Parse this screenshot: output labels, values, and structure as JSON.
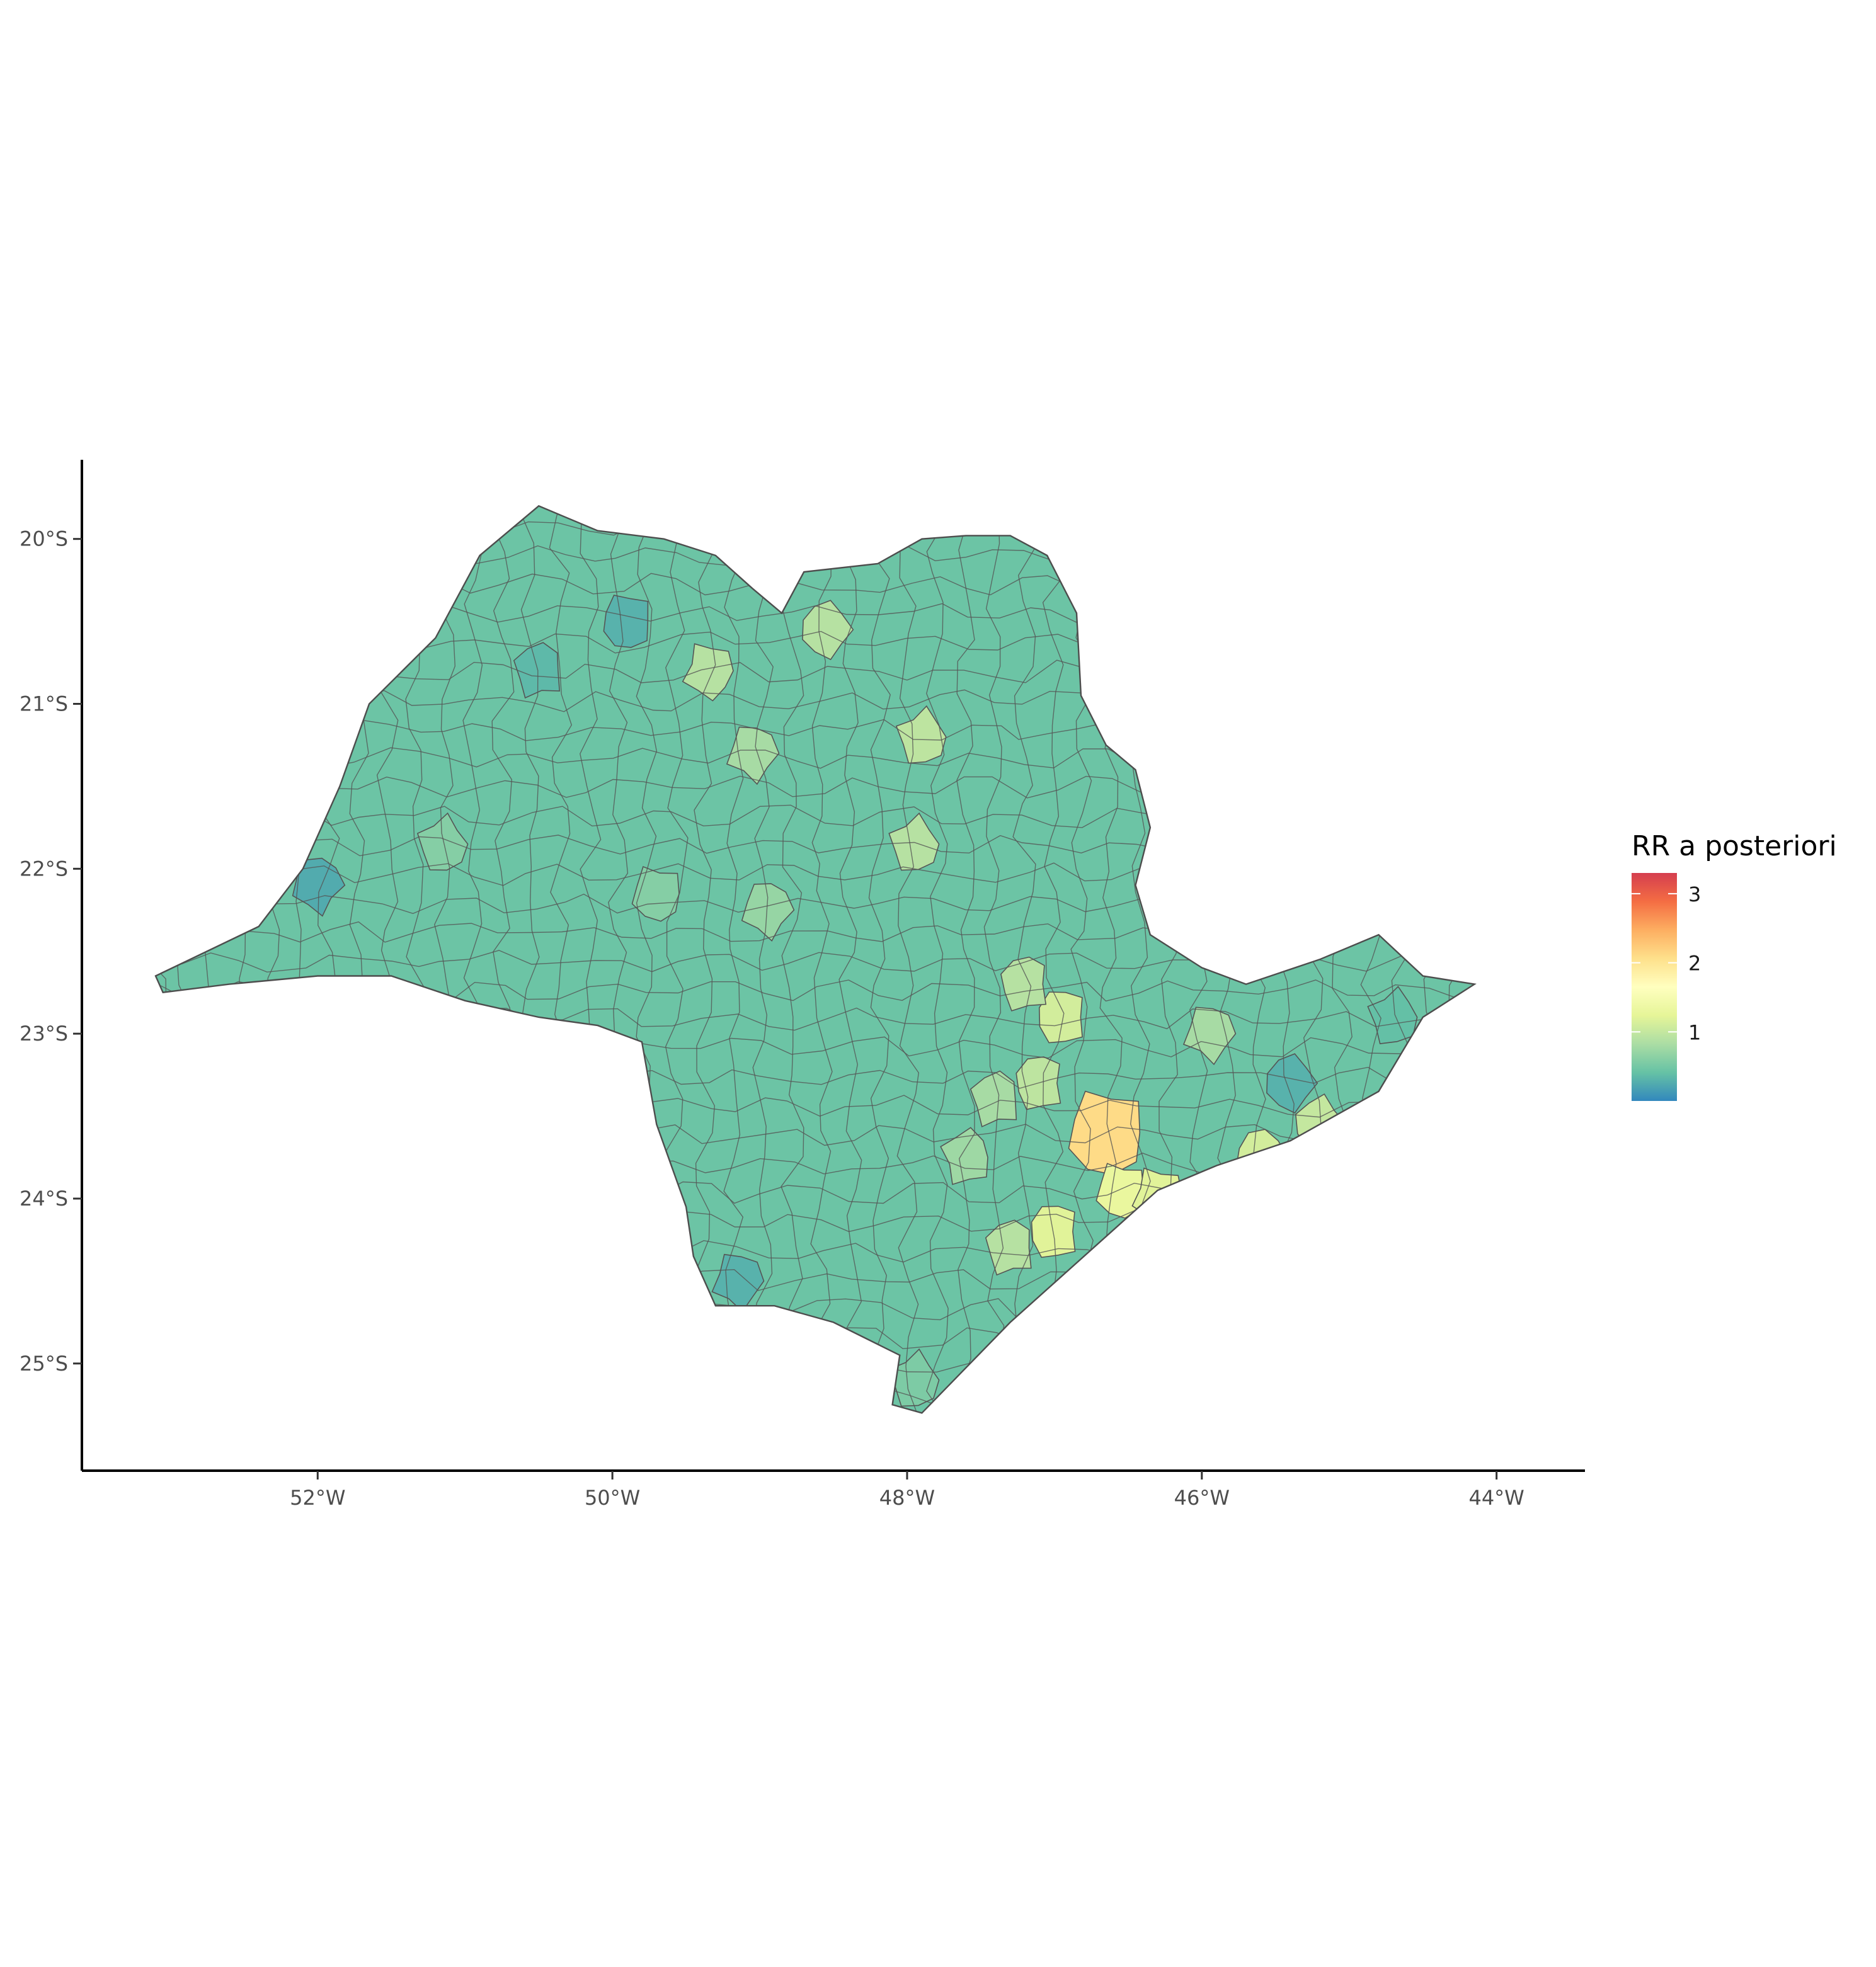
{
  "chart_data": {
    "type": "choropleth",
    "title": "",
    "region": "São Paulo state municipalities",
    "x_axis": {
      "ticks": [
        -52,
        -50,
        -48,
        -46,
        -44
      ],
      "tick_labels": [
        "52°W",
        "50°W",
        "48°W",
        "46°W",
        "44°W"
      ],
      "range": [
        -53.6,
        -43.4
      ]
    },
    "y_axis": {
      "ticks": [
        -20,
        -21,
        -22,
        -23,
        -24,
        -25
      ],
      "tick_labels": [
        "20°S",
        "21°S",
        "22°S",
        "23°S",
        "24°S",
        "25°S"
      ],
      "range": [
        -25.65,
        -19.52
      ]
    },
    "legend": {
      "title": "RR a posteriori",
      "placement": "right",
      "min": 0.0,
      "max": 3.3,
      "breaks": [
        1,
        2,
        3
      ],
      "break_labels": [
        "1",
        "2",
        "3"
      ],
      "colors": [
        "#3288bd",
        "#66c2a5",
        "#abdda4",
        "#e6f598",
        "#ffffbf",
        "#fee08b",
        "#fdae61",
        "#f46d43",
        "#d53e4f"
      ]
    },
    "state_outline": [
      [
        -53.1,
        -22.65
      ],
      [
        -52.4,
        -22.35
      ],
      [
        -52.1,
        -22.0
      ],
      [
        -51.85,
        -21.5
      ],
      [
        -51.65,
        -21.0
      ],
      [
        -51.2,
        -20.6
      ],
      [
        -50.9,
        -20.1
      ],
      [
        -50.5,
        -19.8
      ],
      [
        -50.1,
        -19.95
      ],
      [
        -49.65,
        -20.0
      ],
      [
        -49.3,
        -20.1
      ],
      [
        -49.05,
        -20.3
      ],
      [
        -48.85,
        -20.45
      ],
      [
        -48.7,
        -20.2
      ],
      [
        -48.2,
        -20.15
      ],
      [
        -47.9,
        -20.0
      ],
      [
        -47.6,
        -19.98
      ],
      [
        -47.3,
        -19.98
      ],
      [
        -47.05,
        -20.1
      ],
      [
        -46.85,
        -20.45
      ],
      [
        -46.82,
        -20.95
      ],
      [
        -46.65,
        -21.25
      ],
      [
        -46.45,
        -21.4
      ],
      [
        -46.35,
        -21.75
      ],
      [
        -46.45,
        -22.1
      ],
      [
        -46.35,
        -22.4
      ],
      [
        -46.0,
        -22.6
      ],
      [
        -45.7,
        -22.7
      ],
      [
        -45.2,
        -22.55
      ],
      [
        -44.8,
        -22.4
      ],
      [
        -44.5,
        -22.65
      ],
      [
        -44.15,
        -22.7
      ],
      [
        -44.5,
        -22.9
      ],
      [
        -44.8,
        -23.35
      ],
      [
        -45.4,
        -23.65
      ],
      [
        -45.9,
        -23.8
      ],
      [
        -46.3,
        -23.95
      ],
      [
        -46.8,
        -24.35
      ],
      [
        -47.3,
        -24.75
      ],
      [
        -47.9,
        -25.3
      ],
      [
        -48.1,
        -25.25
      ],
      [
        -48.05,
        -24.95
      ],
      [
        -48.5,
        -24.75
      ],
      [
        -48.9,
        -24.65
      ],
      [
        -49.3,
        -24.65
      ],
      [
        -49.45,
        -24.35
      ],
      [
        -49.5,
        -24.05
      ],
      [
        -49.7,
        -23.55
      ],
      [
        -49.8,
        -23.05
      ],
      [
        -50.1,
        -22.95
      ],
      [
        -50.5,
        -22.9
      ],
      [
        -51.0,
        -22.8
      ],
      [
        -51.5,
        -22.65
      ],
      [
        -52.0,
        -22.65
      ],
      [
        -52.6,
        -22.7
      ],
      [
        -53.05,
        -22.75
      ]
    ],
    "highlighted_areas": [
      {
        "lon": -46.65,
        "lat": -23.6,
        "rr": 2.1
      },
      {
        "lon": -46.55,
        "lat": -23.95,
        "rr": 1.3
      },
      {
        "lon": -46.3,
        "lat": -23.98,
        "rr": 1.2
      },
      {
        "lon": -45.6,
        "lat": -23.75,
        "rr": 1.1
      },
      {
        "lon": -45.2,
        "lat": -23.55,
        "rr": 1.0
      },
      {
        "lon": -46.95,
        "lat": -22.9,
        "rr": 1.1
      },
      {
        "lon": -47.2,
        "lat": -22.7,
        "rr": 0.9
      },
      {
        "lon": -47.1,
        "lat": -23.3,
        "rr": 0.95
      },
      {
        "lon": -47.4,
        "lat": -23.4,
        "rr": 0.8
      },
      {
        "lon": -47.0,
        "lat": -24.2,
        "rr": 1.2
      },
      {
        "lon": -47.3,
        "lat": -24.3,
        "rr": 0.9
      },
      {
        "lon": -47.95,
        "lat": -21.85,
        "rr": 0.9
      },
      {
        "lon": -47.9,
        "lat": -21.2,
        "rr": 0.95
      },
      {
        "lon": -48.55,
        "lat": -20.55,
        "rr": 0.9
      },
      {
        "lon": -49.35,
        "lat": -20.8,
        "rr": 0.9
      },
      {
        "lon": -49.05,
        "lat": -21.3,
        "rr": 0.8
      },
      {
        "lon": -48.95,
        "lat": -22.25,
        "rr": 0.7
      },
      {
        "lon": -51.15,
        "lat": -21.85,
        "rr": 0.6
      },
      {
        "lon": -49.7,
        "lat": -22.15,
        "rr": 0.6
      },
      {
        "lon": -47.6,
        "lat": -23.75,
        "rr": 0.75
      },
      {
        "lon": -45.95,
        "lat": -23.0,
        "rr": 0.8
      },
      {
        "lon": -45.35,
        "lat": -23.85,
        "rr": 0.95
      },
      {
        "lon": -48.7,
        "lat": -24.9,
        "rr": 0.6
      },
      {
        "lon": -47.95,
        "lat": -25.1,
        "rr": 0.55
      },
      {
        "lon": -52.0,
        "lat": -22.1,
        "rr": 0.25
      },
      {
        "lon": -49.15,
        "lat": -24.5,
        "rr": 0.3
      },
      {
        "lon": -50.5,
        "lat": -20.8,
        "rr": 0.35
      },
      {
        "lon": -44.7,
        "lat": -22.9,
        "rr": 0.4
      },
      {
        "lon": -45.4,
        "lat": -23.3,
        "rr": 0.3
      },
      {
        "lon": -49.9,
        "lat": -20.5,
        "rr": 0.3
      }
    ]
  }
}
